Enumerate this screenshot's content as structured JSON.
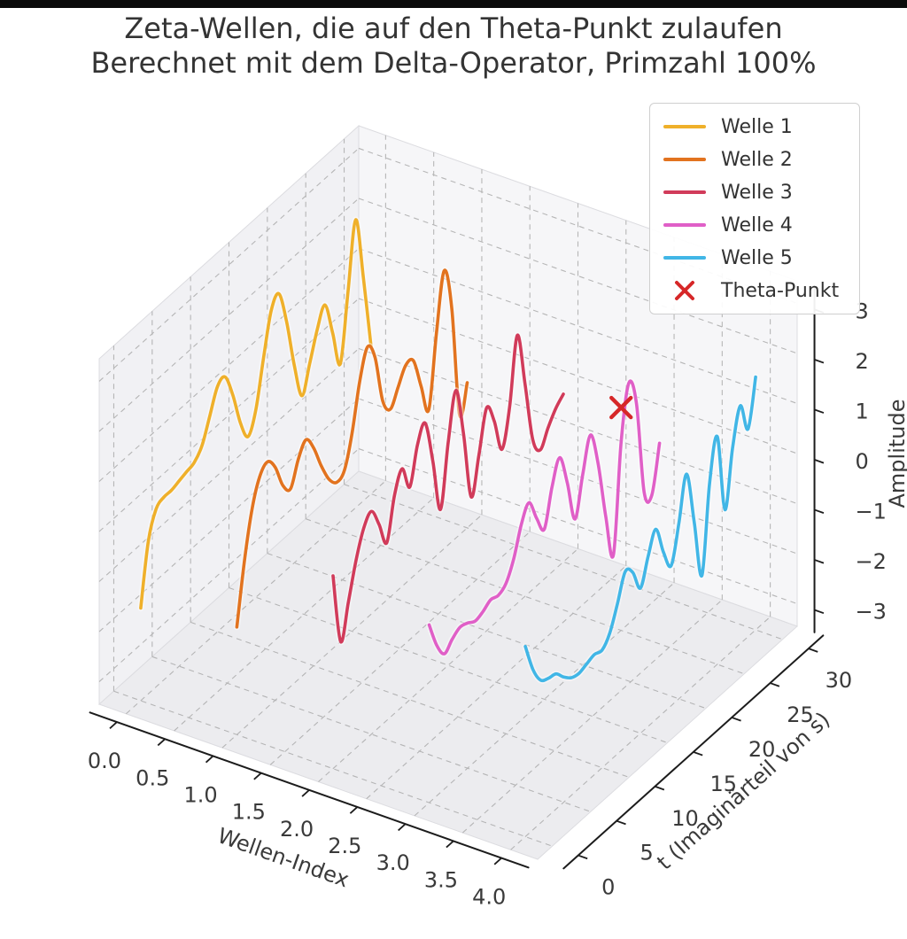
{
  "frame": {
    "top_bar_color": "#0b0b0b",
    "background_color": "#ffffff"
  },
  "title": {
    "line1": "Zeta-Wellen, die auf den Theta-Punkt zulaufen",
    "line2": "Berechnet mit dem Delta-Operator, Primzahl 100%"
  },
  "legend": {
    "position": "upper right",
    "items": [
      {
        "label": "Welle 1",
        "color": "#efb02a",
        "marker": "line"
      },
      {
        "label": "Welle 2",
        "color": "#e2731f",
        "marker": "line"
      },
      {
        "label": "Welle 3",
        "color": "#d13b5a",
        "marker": "line"
      },
      {
        "label": "Welle 4",
        "color": "#e05fc7",
        "marker": "line"
      },
      {
        "label": "Welle 5",
        "color": "#41b6e6",
        "marker": "line"
      },
      {
        "label": "Theta-Punkt",
        "color": "#d62728",
        "marker": "x"
      }
    ]
  },
  "chart_data": {
    "type": "line",
    "projection": "3d",
    "variant": "waterfall",
    "title": "Zeta-Wellen, die auf den Theta-Punkt zulaufen",
    "subtitle": "Berechnet mit dem Delta-Operator, Primzahl 100%",
    "xlabel": "Wellen-Index",
    "ylabel": "t (Imaginärteil von s)",
    "zlabel": "Amplitude",
    "xlim": [
      0,
      4
    ],
    "ylim": [
      0,
      30
    ],
    "zlim": [
      -3,
      3
    ],
    "grid": true,
    "grid_style": "dashed",
    "legend_position": "upper right",
    "x_tick_labels": [
      "0.0",
      "0.5",
      "1.0",
      "1.5",
      "2.0",
      "2.5",
      "3.0",
      "3.5",
      "4.0"
    ],
    "x_tick_values": [
      0,
      0.5,
      1,
      1.5,
      2,
      2.5,
      3,
      3.5,
      4
    ],
    "y_tick_labels": [
      "0",
      "5",
      "10",
      "15",
      "20",
      "25",
      "30"
    ],
    "y_tick_values": [
      0,
      5,
      10,
      15,
      20,
      25,
      30
    ],
    "z_tick_labels": [
      "3",
      "2",
      "1",
      "0",
      "−1",
      "−2",
      "−3"
    ],
    "z_tick_values": [
      3,
      2,
      1,
      0,
      -1,
      -2,
      -3
    ],
    "t_values": [
      0,
      1,
      2,
      3,
      4,
      5,
      6,
      7,
      8,
      9,
      10,
      11,
      12,
      13,
      14,
      15,
      16,
      17,
      18,
      19,
      20,
      21,
      22,
      23,
      24,
      25,
      26,
      27,
      28,
      29,
      30
    ],
    "series": [
      {
        "name": "Welle 1",
        "wave_index": 0,
        "color": "#efb02a",
        "amplitudes": [
          -1.6,
          -0.4,
          0.1,
          0.2,
          0.2,
          0.25,
          0.3,
          0.35,
          0.55,
          1.0,
          1.45,
          1.5,
          1.0,
          0.3,
          -0.1,
          0.3,
          1.2,
          2.0,
          2.2,
          1.5,
          0.5,
          -0.25,
          0.25,
          0.8,
          1.15,
          0.45,
          -0.3,
          1.0,
          2.3,
          1.0,
          -0.5
        ]
      },
      {
        "name": "Welle 2",
        "wave_index": 1,
        "color": "#e2731f",
        "amplitudes": [
          -1.3,
          -0.1,
          0.8,
          1.3,
          1.45,
          1.2,
          0.7,
          0.5,
          0.95,
          1.2,
          0.9,
          0.4,
          0.0,
          -0.2,
          -0.1,
          0.5,
          1.4,
          1.95,
          1.6,
          0.6,
          0.3,
          0.6,
          0.9,
          0.85,
          0.2,
          -0.4,
          1.0,
          2.1,
          1.2,
          -1.05,
          -0.55
        ]
      },
      {
        "name": "Welle 3",
        "wave_index": 2,
        "color": "#d13b5a",
        "amplitudes": [
          0.4,
          -1.05,
          -0.4,
          0.3,
          0.8,
          1.0,
          0.6,
          0.1,
          0.9,
          1.3,
          0.8,
          1.5,
          1.8,
          0.9,
          -0.2,
          1.0,
          1.9,
          0.9,
          -0.5,
          0.2,
          1.0,
          0.6,
          -0.1,
          0.6,
          1.9,
          0.8,
          -0.45,
          -0.8,
          -0.5,
          -0.25,
          -0.1
        ]
      },
      {
        "name": "Welle 4",
        "wave_index": 3,
        "color": "#e05fc7",
        "amplitudes": [
          0.1,
          -0.45,
          -0.75,
          -0.6,
          -0.5,
          -0.55,
          -0.65,
          -0.6,
          -0.5,
          -0.55,
          -0.45,
          -0.1,
          0.45,
          0.75,
          0.3,
          -0.05,
          0.65,
          1.1,
          0.45,
          -0.4,
          0.35,
          1.0,
          0.3,
          -0.9,
          -1.8,
          0.3,
          1.35,
          0.8,
          -1.1,
          -1.3,
          -0.4
        ]
      },
      {
        "name": "Welle 5",
        "wave_index": 4,
        "color": "#41b6e6",
        "amplitudes": [
          0.35,
          -0.25,
          -0.6,
          -0.7,
          -0.75,
          -0.95,
          -1.1,
          -1.15,
          -1.1,
          -1.05,
          -1.1,
          -0.9,
          -0.45,
          0.05,
          -0.1,
          -0.55,
          -0.05,
          0.35,
          -0.25,
          -0.65,
          0.05,
          0.9,
          -0.2,
          -1.4,
          0.3,
          1.1,
          -0.5,
          0.6,
          1.3,
          0.7,
          1.6
        ]
      }
    ],
    "theta_point": {
      "label": "Theta-Punkt",
      "wave_index": 3,
      "t": 25,
      "amplitude": 1.0,
      "color": "#d62728",
      "marker": "x"
    },
    "style": {
      "pane_left": "#f1f1f4",
      "pane_back": "#f6f6f8",
      "pane_floor": "#ececef",
      "pane_edge": "#dcdce0",
      "grid_color": "#ababab",
      "spine_color": "#1c1c1c",
      "tick_label_color": "#3a3a3a"
    }
  }
}
